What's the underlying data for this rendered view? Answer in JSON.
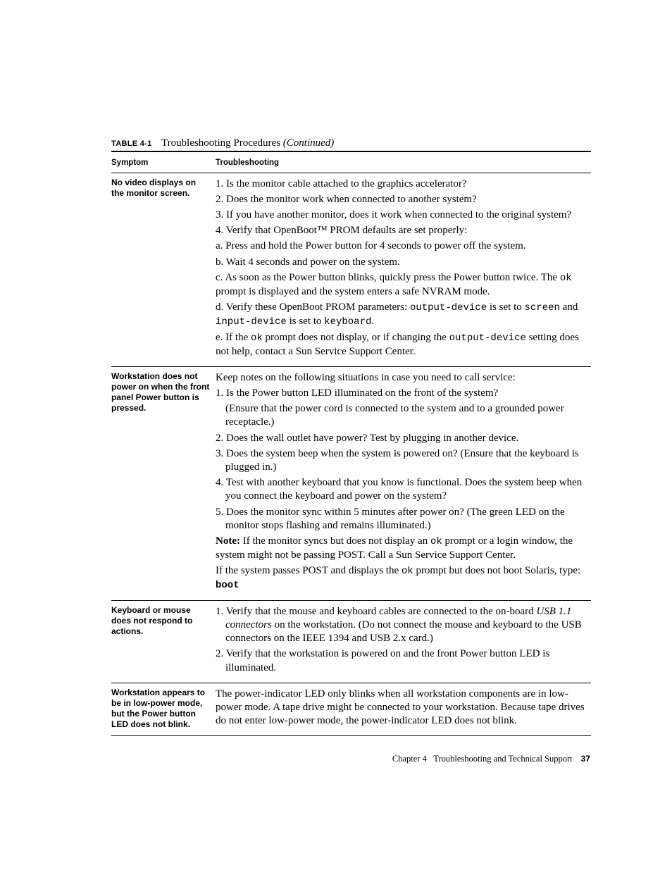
{
  "caption": {
    "label": "TABLE 4-1",
    "title": "Troubleshooting Procedures",
    "continued": "(Continued)"
  },
  "headers": {
    "symptom": "Symptom",
    "troubleshooting": "Troubleshooting"
  },
  "rows": {
    "r1": {
      "symptom": "No video displays on the monitor screen.",
      "p1": "1. Is the monitor cable attached to the graphics accelerator?",
      "p2": "2. Does the monitor work when connected to another system?",
      "p3": "3. If you have another monitor, does it work when connected to the original system?",
      "p4": "4. Verify that OpenBoot™ PROM defaults are set properly:",
      "pa": "a. Press and hold the Power button for 4 seconds to power off the system.",
      "pb": "b. Wait 4 seconds and power on the system.",
      "pc_a": "c. As soon as the Power button blinks, quickly press the Power button twice. The ",
      "pc_ok": "ok",
      "pc_b": " prompt is displayed and the system enters a safe NVRAM mode.",
      "pd_a": "d. Verify these OpenBoot PROM parameters: ",
      "pd_od": "output-device",
      "pd_b": " is set to ",
      "pd_sc": "screen",
      "pd_c": " and ",
      "pd_id": "input-device",
      "pd_d": " is set to ",
      "pd_kb": "keyboard",
      "pd_e": ".",
      "pe_a": "e. If the ",
      "pe_ok": "ok",
      "pe_b": " prompt does not display, or if changing the ",
      "pe_od": "output-device",
      "pe_c": " setting does not help, contact a Sun Service Support Center."
    },
    "r2": {
      "symptom": "Workstation does not power on when the front panel Power button is pressed.",
      "p0": "Keep notes on the following situations in case you need to call service:",
      "p1a": "1. Is the Power button LED illuminated on the front of the system?",
      "p1b": "(Ensure that the power cord is connected to the system and to a grounded power receptacle.)",
      "p2": "2. Does the wall outlet have power? Test by plugging in another device.",
      "p3": "3. Does the system beep when the system is powered on? (Ensure that the keyboard is plugged in.)",
      "p4": "4. Test with another keyboard that you know is functional. Does the system beep when you connect the keyboard and power on the system?",
      "p5": "5. Does the monitor sync within 5 minutes after power on? (The green LED on the monitor stops flashing and remains illuminated.)",
      "note_lbl": "Note:",
      "note_a": " If the monitor syncs but does not display an ",
      "note_ok": "ok",
      "note_b": " prompt or a login window, the system might not be passing POST. Call a Sun Service Support Center.",
      "post_a": "If the system passes POST and displays the ",
      "post_ok": "ok",
      "post_b": " prompt but does not boot Solaris, type: ",
      "post_boot": "boot"
    },
    "r3": {
      "symptom": "Keyboard or mouse does not respond to actions.",
      "p1_a": "1. Verify that the mouse and keyboard cables are connected to the on-board ",
      "p1_usb": "USB 1.1 connectors",
      "p1_b": " on the workstation. (Do not connect the mouse and keyboard to the USB connectors on the IEEE 1394 and USB 2.x card.)",
      "p2": "2. Verify that the workstation is powered on and the front Power button LED is illuminated."
    },
    "r4": {
      "symptom": "Workstation appears to be in low-power mode, but the Power button LED does not blink.",
      "p1": "The power-indicator LED only blinks when all workstation components are in low-power mode. A tape drive might be connected to your workstation. Because tape drives do not enter low-power mode, the power-indicator LED does not blink."
    }
  },
  "footer": {
    "chapter": "Chapter 4",
    "title": "Troubleshooting and Technical Support",
    "page": "37"
  }
}
